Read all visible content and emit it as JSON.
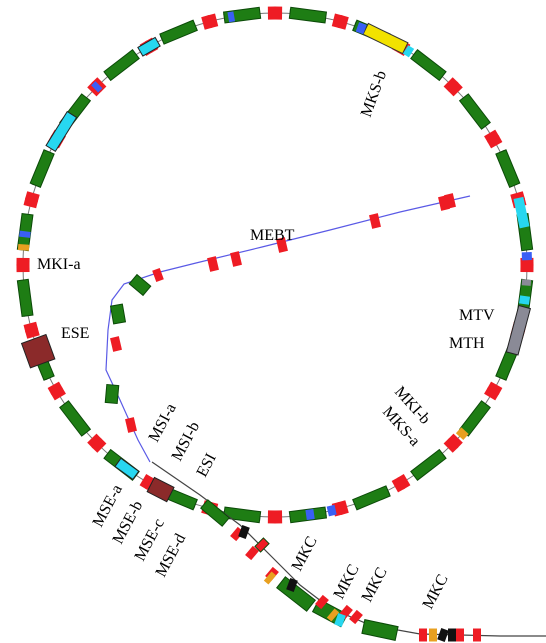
{
  "diagram": {
    "labels": {
      "mks_b": "MKS-b",
      "mebt": "MEBT",
      "mki_a": "MKI-a",
      "ese": "ESE",
      "mtv": "MTV",
      "mth": "MTH",
      "mki_b": "MKI-b",
      "mks_a": "MKS-a",
      "msi_a": "MSI-a",
      "msi_b": "MSI-b",
      "esi": "ESI",
      "mse_a": "MSE-a",
      "mse_b": "MSE-b",
      "mse_c": "MSE-c",
      "mse_d": "MSE-d",
      "mkc_1": "MKC",
      "mkc_2": "MKC",
      "mkc_3": "MKC",
      "mkc_4": "MKC"
    },
    "colors": {
      "dipole": "#1e7d14",
      "dipole_stroke": "#0b4a08",
      "quadrupole": "#ee1c24",
      "corrector": "#e8a020",
      "kicker": "#3a5ff5",
      "monitor": "#27d7f0",
      "septum": "#8b2a2a",
      "gray": "#8a8a96",
      "black": "#111111",
      "beamline": "#5a5ae6",
      "yellow": "#f2e200"
    }
  }
}
